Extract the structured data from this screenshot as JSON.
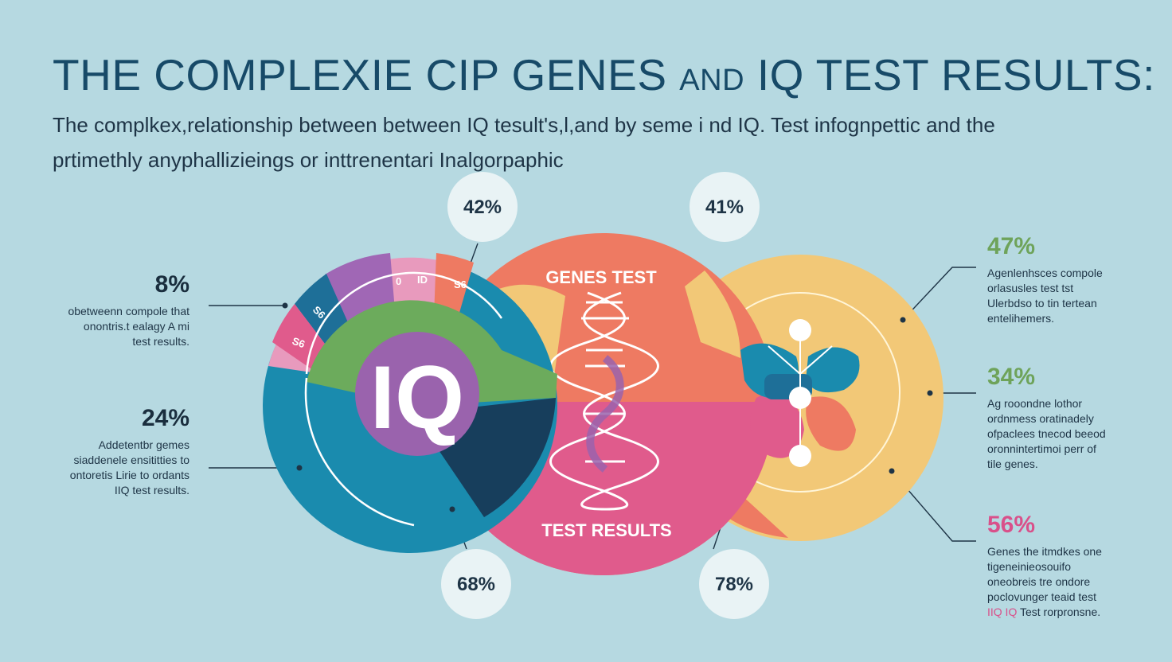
{
  "title": {
    "main": "THE COMPLEXIE CIP GENES",
    "and": "AND",
    "tail": "IQ TEST RESULTS:"
  },
  "subtitle": {
    "line1": "The complkex,relationship between between IQ tesult's,l,and by seme i nd IQ. Test infognpettic and the",
    "line2": "prtimethly anyphallizieings or inttrenentari Inalgorpaphic"
  },
  "diagram": {
    "center_label": "IQ",
    "genes_label": "GENES TEST",
    "results_label": "TEST RESULTS",
    "segment_labels": [
      "S6",
      "S6",
      "0",
      "ID",
      "S6"
    ],
    "bubbles": {
      "top_left": "42%",
      "top_right": "41%",
      "bottom_left": "68%",
      "bottom_right": "78%"
    },
    "colors": {
      "teal": "#1a8bae",
      "navy": "#173e5c",
      "green": "#6cab5c",
      "purple": "#9a63ad",
      "coral": "#ee7a62",
      "pink": "#e05b8c",
      "yellow": "#f2c877",
      "magenta": "#d24a8f",
      "background": "#b6d9e1"
    }
  },
  "callouts": {
    "left1": {
      "pct": "8%",
      "lines": [
        "obetweenn compole that",
        "onontris.t ealagy A mi",
        "test results."
      ]
    },
    "left2": {
      "pct": "24%",
      "lines": [
        "Addetentbr gemes",
        "siaddenele ensititties to",
        "ontoretis Lirie to ordants",
        "IIQ test results."
      ]
    },
    "right1": {
      "pct": "47%",
      "lines": [
        "Agenlenhsces compole",
        "orlasusles test tst",
        "Ulerbdso to tin tertean",
        "entelihemers."
      ]
    },
    "right2": {
      "pct": "34%",
      "lines": [
        "Ag rooondne lothor",
        "ordnmess oratinadely",
        "ofpaclees tnecod beeod",
        "oronnintertimoi perr of",
        "tile genes."
      ]
    },
    "right3": {
      "pct": "56%",
      "lines": [
        "Genes the itmdkes one",
        "tigeneinieosouifo",
        "oneobreis tre ondore",
        "poclovunger teaid test"
      ],
      "last_hl": "IIQ IQ",
      "last_rest": " Test rorpronsne."
    }
  }
}
